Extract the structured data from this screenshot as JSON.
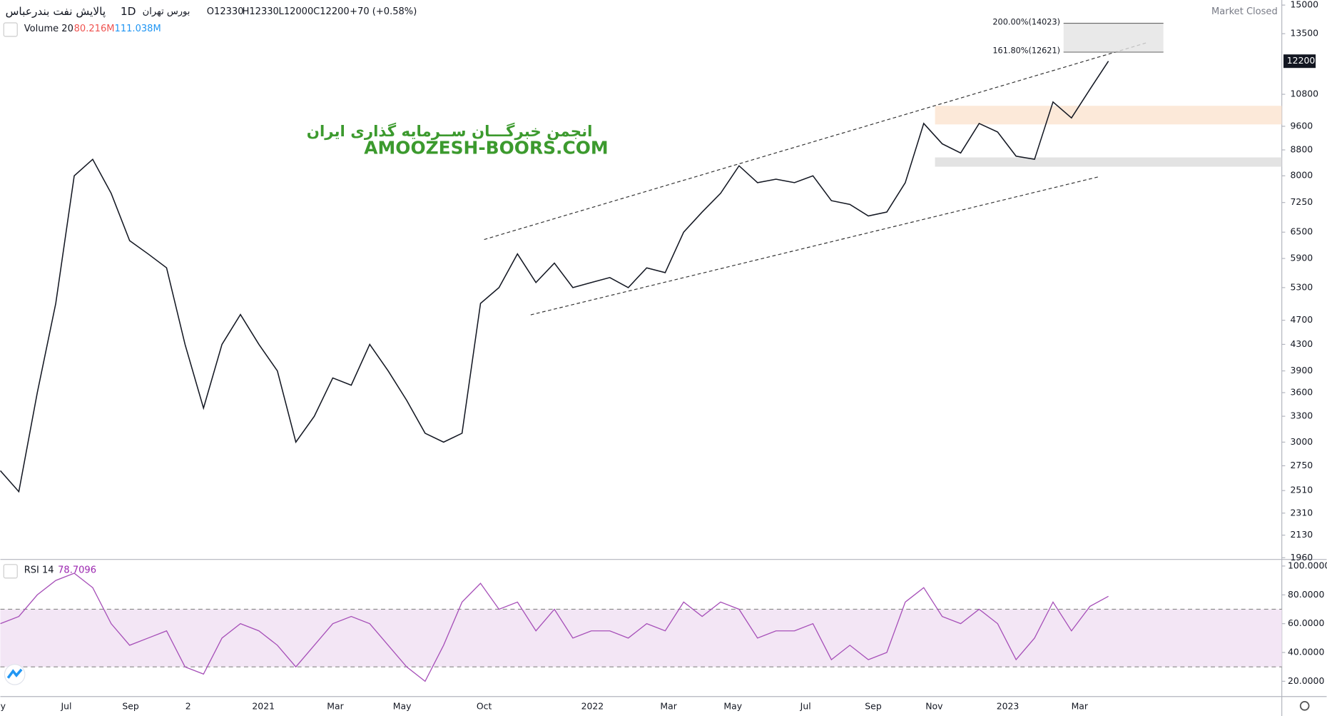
{
  "header": {
    "symbol": "پالایش نفت بندرعباس",
    "interval": "1D",
    "exchange": "بورس تهران",
    "open": "O12330",
    "high": "H12330",
    "low": "L12000",
    "close": "C12200",
    "change": "+70 (+0.58%)",
    "status": "Market Closed",
    "volume_title": "Volume 20",
    "volume_value_1": "80.216M",
    "volume_value_2": "111.038M"
  },
  "watermark": {
    "line1": "انجمن خبرگـــان ســرمایه گذاری ایران",
    "line2": "AMOOZESH-BOORS.COM"
  },
  "chart_data": [
    {
      "type": "line",
      "color": "#131722",
      "log_scale": true,
      "ylim": [
        1960,
        15000
      ],
      "yticks": [
        1960,
        2130,
        2310,
        2510,
        2750,
        3000,
        3300,
        3600,
        3900,
        4300,
        4700,
        5300,
        5900,
        6500,
        7250,
        8000,
        8800,
        9600,
        10800,
        13500,
        15000
      ],
      "x_labels": [
        "ay",
        "Jul",
        "Sep",
        "2",
        "2021",
        "Mar",
        "May",
        "Oct",
        "2022",
        "Mar",
        "May",
        "Jul",
        "Sep",
        "Nov",
        "2023",
        "Mar"
      ],
      "values": [
        2700,
        2500,
        3600,
        5000,
        8000,
        8500,
        7500,
        6300,
        6000,
        5700,
        4300,
        3400,
        4300,
        4800,
        4300,
        3900,
        3000,
        3300,
        3800,
        3700,
        4300,
        3900,
        3500,
        3100,
        3000,
        3100,
        5000,
        5300,
        6000,
        5400,
        5800,
        5300,
        5400,
        5500,
        5300,
        5700,
        5600,
        6500,
        7000,
        7500,
        8300,
        7800,
        7900,
        7800,
        8000,
        7300,
        7200,
        6900,
        7000,
        7800,
        9700,
        9000,
        8700,
        9700,
        9400,
        8600,
        8500,
        10500,
        9900,
        11000,
        12200
      ],
      "last_price": 12200,
      "fib_levels": [
        {
          "value": 12621,
          "label": "161.80%(12621)"
        },
        {
          "value": 14023,
          "label": "200.00%(14023)"
        }
      ]
    },
    {
      "type": "rsi",
      "title": "RSI 14",
      "value_label": "78.7096",
      "color": "#a64fb8",
      "ylim": [
        10,
        104
      ],
      "band": [
        30,
        70
      ],
      "yticks": [
        {
          "value": 100,
          "label": "100.0000"
        },
        {
          "value": 80,
          "label": "80.0000"
        },
        {
          "value": 60,
          "label": "60.0000"
        },
        {
          "value": 40,
          "label": "40.0000"
        },
        {
          "value": 20,
          "label": "20.0000"
        }
      ],
      "values": [
        60,
        65,
        80,
        90,
        95,
        85,
        60,
        45,
        50,
        55,
        30,
        25,
        50,
        60,
        55,
        45,
        30,
        45,
        60,
        65,
        60,
        45,
        30,
        20,
        45,
        75,
        88,
        70,
        75,
        55,
        70,
        50,
        55,
        55,
        50,
        60,
        55,
        75,
        65,
        75,
        70,
        50,
        55,
        55,
        60,
        35,
        45,
        35,
        40,
        75,
        85,
        65,
        60,
        70,
        60,
        35,
        50,
        75,
        55,
        72,
        79
      ]
    }
  ]
}
